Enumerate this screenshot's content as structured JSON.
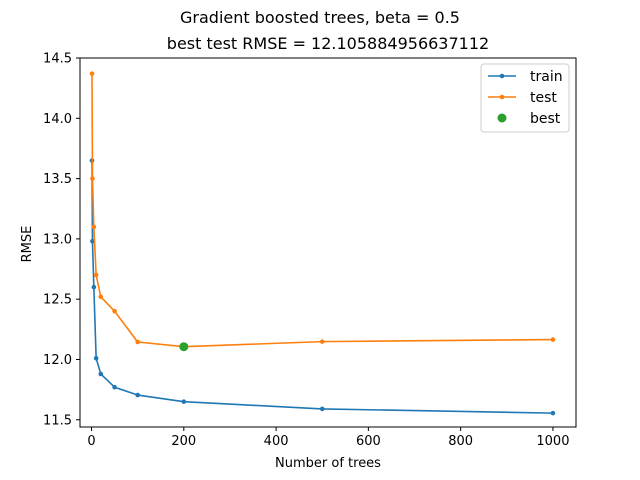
{
  "chart_data": {
    "type": "line",
    "title": "Gradient boosted trees, beta = 0.5",
    "subtitle": "best test RMSE = 12.105884956637112",
    "xlabel": "Number of trees",
    "ylabel": "RMSE",
    "xlim": [
      -25,
      1050
    ],
    "ylim": [
      11.44,
      14.5
    ],
    "xticks": [
      0,
      200,
      400,
      600,
      800,
      1000
    ],
    "yticks": [
      11.5,
      12.0,
      12.5,
      13.0,
      13.5,
      14.0,
      14.5
    ],
    "xtick_labels": [
      "0",
      "200",
      "400",
      "600",
      "800",
      "1000"
    ],
    "ytick_labels": [
      "11.5",
      "12.0",
      "12.5",
      "13.0",
      "13.5",
      "14.0",
      "14.5"
    ],
    "grid": false,
    "legend_position": "top-right",
    "series": [
      {
        "name": "train",
        "color": "#1f77b4",
        "marker": "point",
        "x": [
          1,
          2,
          5,
          10,
          20,
          50,
          100,
          200,
          500,
          1000
        ],
        "y": [
          13.65,
          12.98,
          12.6,
          12.01,
          11.88,
          11.77,
          11.705,
          11.65,
          11.59,
          11.555
        ]
      },
      {
        "name": "test",
        "color": "#ff7f0e",
        "marker": "point",
        "x": [
          1,
          2,
          5,
          10,
          20,
          50,
          100,
          200,
          500,
          1000
        ],
        "y": [
          14.37,
          13.5,
          13.1,
          12.7,
          12.52,
          12.4,
          12.145,
          12.106,
          12.148,
          12.165
        ]
      },
      {
        "name": "best",
        "color": "#2ca02c",
        "marker": "circle",
        "x": [
          200
        ],
        "y": [
          12.105884956637112
        ]
      }
    ]
  }
}
